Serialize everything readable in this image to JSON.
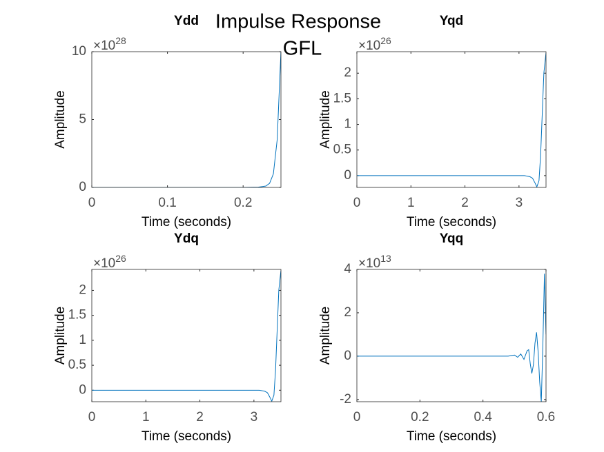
{
  "title": "Impulse Response",
  "subtitle": "GFL",
  "chart_data": [
    {
      "type": "line",
      "title": "Ydd",
      "xlabel": "Time (seconds)",
      "ylabel": "Amplitude",
      "y_scale": {
        "base": "×10",
        "exponent": "28"
      },
      "color": "#0072bd",
      "x": [
        0,
        0.05,
        0.1,
        0.15,
        0.2,
        0.22,
        0.23,
        0.235,
        0.24,
        0.245,
        0.25
      ],
      "values": [
        0,
        0,
        0,
        0,
        0,
        0.02,
        0.1,
        0.3,
        1.0,
        3.5,
        10
      ],
      "xlim": [
        0,
        0.25
      ],
      "ylim": [
        0,
        10
      ],
      "xticks": [
        0,
        0.1,
        0.2
      ],
      "yticks": [
        0,
        5,
        10
      ]
    },
    {
      "type": "line",
      "title": "Yqd",
      "xlabel": "Time (seconds)",
      "ylabel": "Amplitude",
      "y_scale": {
        "base": "×10",
        "exponent": "26"
      },
      "color": "#0072bd",
      "x": [
        0,
        1,
        2,
        3,
        3.1,
        3.2,
        3.25,
        3.3,
        3.33,
        3.37,
        3.4,
        3.43,
        3.46,
        3.5
      ],
      "values": [
        0,
        0,
        0,
        0,
        0,
        -0.02,
        -0.05,
        -0.15,
        -0.22,
        -0.1,
        0.4,
        1.2,
        2.0,
        2.4
      ],
      "xlim": [
        0,
        3.5
      ],
      "ylim": [
        -0.23,
        2.42
      ],
      "xticks": [
        0,
        1,
        2,
        3
      ],
      "yticks": [
        0,
        0.5,
        1,
        1.5,
        2
      ]
    },
    {
      "type": "line",
      "title": "Ydq",
      "xlabel": "Time (seconds)",
      "ylabel": "Amplitude",
      "y_scale": {
        "base": "×10",
        "exponent": "26"
      },
      "color": "#0072bd",
      "x": [
        0,
        1,
        2,
        3,
        3.1,
        3.2,
        3.25,
        3.3,
        3.33,
        3.37,
        3.4,
        3.43,
        3.46,
        3.5
      ],
      "values": [
        0,
        0,
        0,
        0,
        0,
        -0.02,
        -0.05,
        -0.15,
        -0.22,
        -0.1,
        0.4,
        1.2,
        2.0,
        2.4
      ],
      "xlim": [
        0,
        3.5
      ],
      "ylim": [
        -0.23,
        2.42
      ],
      "xticks": [
        0,
        1,
        2,
        3
      ],
      "yticks": [
        0,
        0.5,
        1,
        1.5,
        2
      ]
    },
    {
      "type": "line",
      "title": "Yqq",
      "xlabel": "Time (seconds)",
      "ylabel": "Amplitude",
      "y_scale": {
        "base": "×10",
        "exponent": "13"
      },
      "color": "#0072bd",
      "x": [
        0,
        0.2,
        0.4,
        0.48,
        0.5,
        0.51,
        0.52,
        0.53,
        0.54,
        0.545,
        0.55,
        0.555,
        0.56,
        0.565,
        0.57,
        0.575,
        0.58,
        0.585,
        0.59,
        0.595,
        0.6
      ],
      "values": [
        0,
        0,
        0,
        0,
        0.05,
        -0.05,
        0.1,
        -0.15,
        0.25,
        0.3,
        -0.35,
        -0.8,
        -0.4,
        0.6,
        1.1,
        0.2,
        -1.2,
        -2.1,
        0.5,
        3.8,
        1.0
      ],
      "xlim": [
        0,
        0.6
      ],
      "ylim": [
        -2.1,
        4
      ],
      "xticks": [
        0,
        0.2,
        0.4,
        0.6
      ],
      "yticks": [
        -2,
        0,
        2,
        4
      ]
    }
  ]
}
